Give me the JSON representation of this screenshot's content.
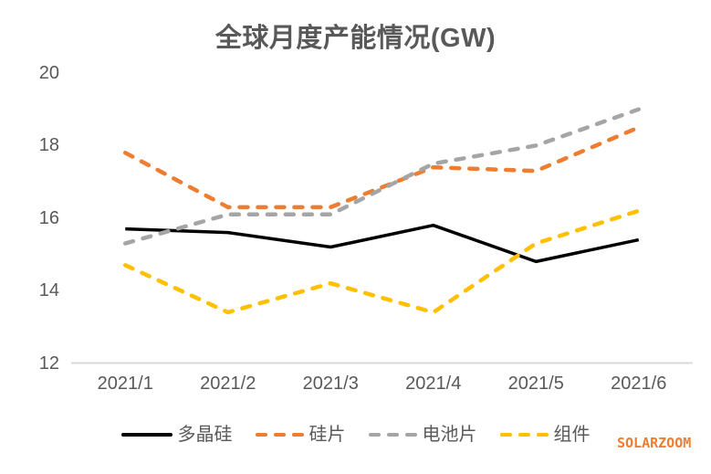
{
  "watermark": "SOLARZOOM",
  "chart_data": {
    "type": "line",
    "title": "全球月度产能情况(GW)",
    "categories": [
      "2021/1",
      "2021/2",
      "2021/3",
      "2021/4",
      "2021/5",
      "2021/6"
    ],
    "series": [
      {
        "name": "多晶硅",
        "color": "#000000",
        "dashed": false,
        "values": [
          15.7,
          15.6,
          15.2,
          15.8,
          14.8,
          15.4
        ]
      },
      {
        "name": "硅片",
        "color": "#ED7D31",
        "dashed": true,
        "values": [
          17.8,
          16.3,
          16.3,
          17.4,
          17.3,
          18.5
        ]
      },
      {
        "name": "电池片",
        "color": "#A5A5A5",
        "dashed": true,
        "values": [
          15.3,
          16.1,
          16.1,
          17.5,
          18.0,
          19.0
        ]
      },
      {
        "name": "组件",
        "color": "#FFC000",
        "dashed": true,
        "values": [
          14.7,
          13.4,
          14.2,
          13.4,
          15.3,
          16.2
        ]
      }
    ],
    "xlabel": "",
    "ylabel": "",
    "ylim": [
      12,
      20
    ],
    "yticks": [
      12,
      14,
      16,
      18,
      20
    ],
    "grid": false,
    "legend_position": "bottom",
    "axis_line_color": "#D9D9D9",
    "label_color": "#595959"
  }
}
